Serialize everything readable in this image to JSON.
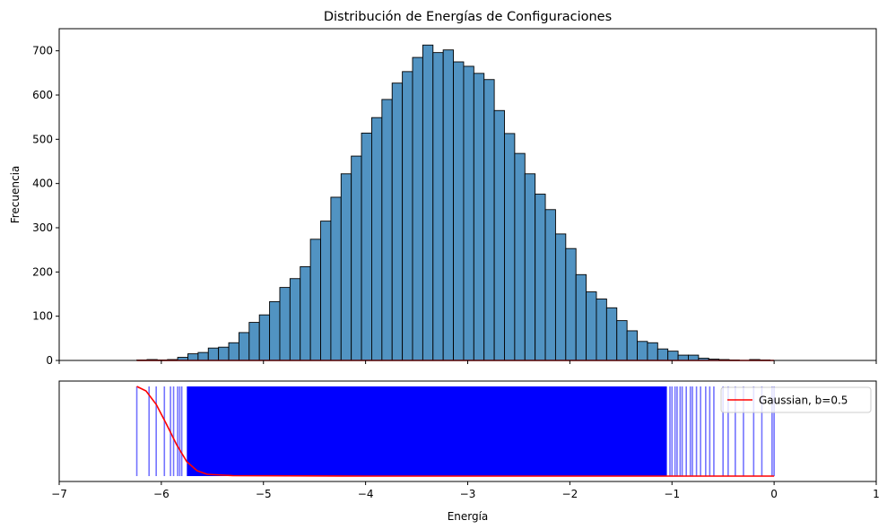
{
  "chart_data": [
    {
      "type": "bar",
      "subtype": "histogram",
      "title": "Distribución de Energías de Configuraciones",
      "xlabel": "",
      "ylabel": "Frecuencia",
      "xlim": [
        -7,
        1
      ],
      "ylim": [
        0,
        750
      ],
      "yticks": [
        0,
        100,
        200,
        300,
        400,
        500,
        600,
        700
      ],
      "xticks": [
        -7,
        -6,
        -5,
        -4,
        -3,
        -2,
        -1,
        0,
        1
      ],
      "grid": false,
      "bar_color": "#5193c2",
      "edge_color": "#000000",
      "bin_start": -6.24,
      "bin_width": 0.1,
      "values": [
        1,
        2,
        1,
        2,
        7,
        15,
        18,
        28,
        30,
        40,
        63,
        86,
        103,
        133,
        165,
        185,
        212,
        274,
        315,
        369,
        422,
        462,
        514,
        549,
        590,
        627,
        653,
        685,
        713,
        696,
        702,
        675,
        665,
        649,
        635,
        565,
        513,
        468,
        422,
        376,
        341,
        286,
        253,
        194,
        155,
        139,
        119,
        90,
        67,
        43,
        40,
        26,
        21,
        12,
        12,
        5,
        3,
        2,
        1,
        0,
        2,
        1
      ],
      "overlay_line": {
        "color": "#ff0000",
        "y": 0,
        "x_range": [
          -6.24,
          0
        ]
      }
    },
    {
      "type": "line",
      "subtype": "rug",
      "xlabel": "Energía",
      "xlim": [
        -7,
        1
      ],
      "xticks": [
        -7,
        -6,
        -5,
        -4,
        -3,
        -2,
        -1,
        0,
        1
      ],
      "xtick_labels": [
        "−7",
        "−6",
        "−5",
        "−4",
        "−3",
        "−2",
        "−1",
        "0",
        "1"
      ],
      "y_hidden": true,
      "rug_color": "#0000ff",
      "rug_dense_range": [
        -5.75,
        -1.05
      ],
      "rug_lines": [
        -6.24,
        -6.12,
        -6.05,
        -5.97,
        -5.91,
        -5.88,
        -5.84,
        -5.82,
        -5.8,
        -1.02,
        -1.0,
        -0.97,
        -0.95,
        -0.92,
        -0.9,
        -0.86,
        -0.82,
        -0.8,
        -0.76,
        -0.72,
        -0.67,
        -0.63,
        -0.59,
        -0.5,
        -0.45,
        -0.38,
        -0.3,
        -0.2,
        -0.12,
        -0.02,
        0.0
      ],
      "series": [
        {
          "name": "Gaussian, b=0.5",
          "color": "#ff0000",
          "x": [
            -6.24,
            -6.15,
            -6.05,
            -5.95,
            -5.85,
            -5.75,
            -5.65,
            -5.55,
            -5.3,
            -4.0,
            -3.0,
            -2.0,
            -1.0,
            0.0
          ],
          "y": [
            1.0,
            0.95,
            0.8,
            0.58,
            0.35,
            0.16,
            0.06,
            0.02,
            0.005,
            0.0,
            0.0,
            0.0,
            0.0,
            0.0
          ]
        }
      ],
      "legend_position": "top-right"
    }
  ]
}
